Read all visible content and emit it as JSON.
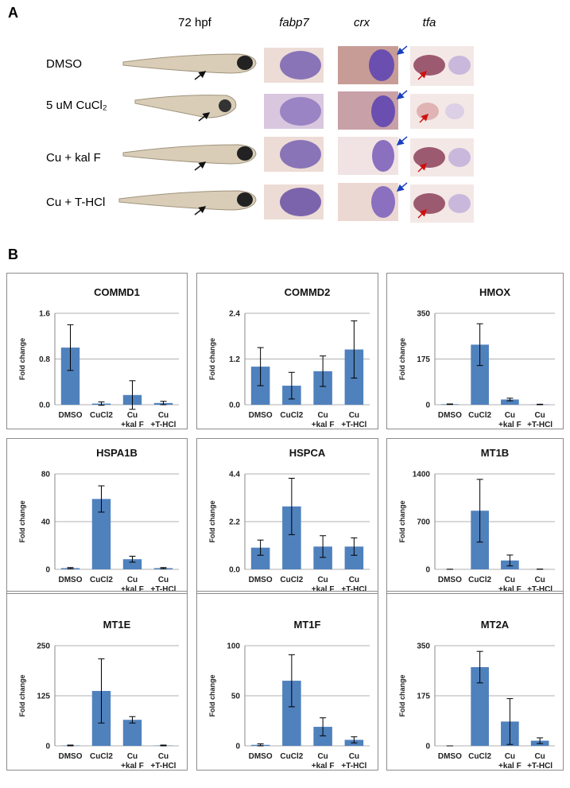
{
  "panels": {
    "a": {
      "label": "A",
      "columns": [
        "72 hpf",
        "fabp7",
        "crx",
        "tfa"
      ],
      "rows": [
        "DMSO",
        "5 uM CuCl₂",
        "Cu + kal F",
        "Cu + T-HCl"
      ]
    },
    "b": {
      "label": "B"
    }
  },
  "chart_data": [
    {
      "type": "bar",
      "title": "COMMD1",
      "ylabel": "Fold change",
      "categories": [
        "DMSO",
        "CuCl2",
        "Cu\n+kal F",
        "Cu\n+T-HCl"
      ],
      "values": [
        1.0,
        0.02,
        0.17,
        0.03
      ],
      "errors": [
        0.4,
        0.03,
        0.25,
        0.03
      ],
      "color": "#4f81bd",
      "ylim": [
        0,
        1.6
      ],
      "yticks": [
        {
          "value": 0,
          "label": "0.0"
        },
        0.8,
        1.6
      ],
      "grid": true
    },
    {
      "type": "bar",
      "title": "COMMD2",
      "ylabel": "Fold change",
      "categories": [
        "DMSO",
        "CuCl2",
        "Cu\n+kal F",
        "Cu\n+T-HCl"
      ],
      "values": [
        1.0,
        0.5,
        0.88,
        1.45
      ],
      "errors": [
        0.5,
        0.35,
        0.4,
        0.75
      ],
      "color": "#4f81bd",
      "ylim": [
        0,
        2.4
      ],
      "yticks": [
        {
          "value": 0,
          "label": "0.0"
        },
        1.2,
        2.4
      ],
      "grid": true
    },
    {
      "type": "bar",
      "title": "HMOX",
      "ylabel": "Fold change",
      "categories": [
        "DMSO",
        "CuCl2",
        "Cu\n+kal F",
        "Cu\n+T-HCl"
      ],
      "values": [
        2,
        230,
        20,
        1
      ],
      "errors": [
        1,
        80,
        5,
        1
      ],
      "color": "#4f81bd",
      "ylim": [
        0,
        350
      ],
      "yticks": [
        0,
        175,
        350
      ],
      "grid": true
    },
    {
      "type": "bar",
      "title": "HSPA1B",
      "ylabel": "Fold change",
      "categories": [
        "DMSO",
        "CuCl2",
        "Cu\n+kal F",
        "Cu\n+T-HCl"
      ],
      "values": [
        1,
        59,
        8.5,
        1
      ],
      "errors": [
        0.5,
        11,
        2.5,
        0.5
      ],
      "color": "#4f81bd",
      "ylim": [
        0,
        80
      ],
      "yticks": [
        0,
        40,
        80
      ],
      "grid": true
    },
    {
      "type": "bar",
      "title": "HSPCA",
      "ylabel": "Fold change",
      "categories": [
        "DMSO",
        "CuCl2",
        "Cu\n+kal F",
        "Cu\n+T-HCl"
      ],
      "values": [
        1.0,
        2.9,
        1.05,
        1.05
      ],
      "errors": [
        0.35,
        1.3,
        0.5,
        0.4
      ],
      "color": "#4f81bd",
      "ylim": [
        0,
        4.4
      ],
      "yticks": [
        {
          "value": 0,
          "label": "0.0"
        },
        2.2,
        4.4
      ],
      "grid": true
    },
    {
      "type": "bar",
      "title": "MT1B",
      "ylabel": "Fold change",
      "categories": [
        "DMSO",
        "CuCl2",
        "Cu\n+kal F",
        "Cu\n+T-HCl"
      ],
      "values": [
        1,
        860,
        130,
        2
      ],
      "errors": [
        1,
        460,
        80,
        2
      ],
      "color": "#4f81bd",
      "ylim": [
        0,
        1400
      ],
      "yticks": [
        0,
        700,
        1400
      ],
      "grid": true
    },
    {
      "type": "bar",
      "title": "MT1E",
      "ylabel": "Fold change",
      "categories": [
        "DMSO",
        "CuCl2",
        "Cu\n+kal F",
        "Cu\n+T-HCl"
      ],
      "values": [
        1,
        137,
        65,
        1
      ],
      "errors": [
        1,
        80,
        8,
        1
      ],
      "color": "#4f81bd",
      "ylim": [
        0,
        250
      ],
      "yticks": [
        0,
        125,
        250
      ],
      "grid": true
    },
    {
      "type": "bar",
      "title": "MT1F",
      "ylabel": "Fold change",
      "categories": [
        "DMSO",
        "CuCl2",
        "Cu\n+kal F",
        "Cu\n+T-HCl"
      ],
      "values": [
        1,
        65,
        19,
        6
      ],
      "errors": [
        1,
        26,
        9,
        3
      ],
      "color": "#4f81bd",
      "ylim": [
        0,
        100
      ],
      "yticks": [
        0,
        50,
        100
      ],
      "grid": true
    },
    {
      "type": "bar",
      "title": "MT2A",
      "ylabel": "Fold change",
      "categories": [
        "DMSO",
        "CuCl2",
        "Cu\n+kal F",
        "Cu\n+T-HCl"
      ],
      "values": [
        0,
        275,
        85,
        18
      ],
      "errors": [
        0,
        55,
        80,
        10
      ],
      "color": "#4f81bd",
      "ylim": [
        0,
        350
      ],
      "yticks": [
        0,
        175,
        350
      ],
      "grid": true
    }
  ]
}
